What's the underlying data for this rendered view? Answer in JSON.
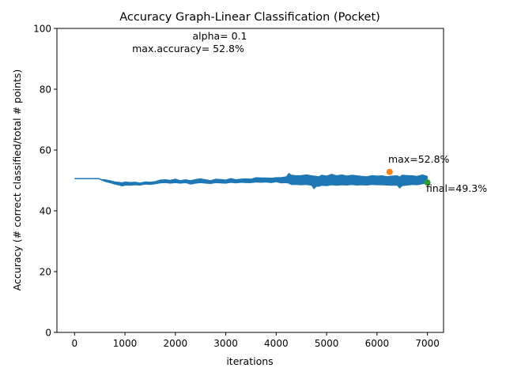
{
  "chart_data": {
    "type": "line",
    "title": "Accuracy Graph-Linear Classification (Pocket)",
    "xlabel": "iterations",
    "ylabel": "Accuracy (# correct classified/total # points)",
    "xlim": [
      -350,
      7320
    ],
    "ylim": [
      0,
      100
    ],
    "xticks": [
      0,
      1000,
      2000,
      3000,
      4000,
      5000,
      6000,
      7000
    ],
    "yticks": [
      0,
      20,
      40,
      60,
      80,
      100
    ],
    "grid": false,
    "legend": "none",
    "annotations": {
      "alpha_text": "alpha= 0.1",
      "max_accuracy_text": "max.accuracy= 52.8%",
      "max_label": "max=52.8%",
      "final_label": "final=49.3%"
    },
    "max_point": {
      "x": 6250,
      "y": 52.8
    },
    "final_point": {
      "x": 7000,
      "y": 49.3
    },
    "series": [
      {
        "color": "#1f77b4",
        "x": [
          0,
          480,
          520,
          600,
          700,
          800,
          900,
          950,
          1000,
          1100,
          1200,
          1300,
          1400,
          1500,
          1600,
          1700,
          1800,
          1900,
          2000,
          2100,
          2200,
          2300,
          2400,
          2500,
          2600,
          2700,
          2800,
          2900,
          3000,
          3100,
          3200,
          3300,
          3400,
          3500,
          3600,
          3700,
          3800,
          3900,
          4000,
          4100,
          4200,
          4250,
          4300,
          4400,
          4500,
          4600,
          4700,
          4750,
          4800,
          4850,
          4900,
          5000,
          5100,
          5200,
          5300,
          5400,
          5500,
          5600,
          5700,
          5800,
          5900,
          6000,
          6100,
          6200,
          6300,
          6400,
          6450,
          6500,
          6600,
          6700,
          6800,
          6900,
          7000
        ],
        "y": [
          50.6,
          50.6,
          50.3,
          49.9,
          49.6,
          49.0,
          48.8,
          48.3,
          49.2,
          48.6,
          48.9,
          48.5,
          49.3,
          48.9,
          49.1,
          49.7,
          49.8,
          49.5,
          49.9,
          49.3,
          49.6,
          48.9,
          49.8,
          50.1,
          49.6,
          49.2,
          50.0,
          49.8,
          49.6,
          50.2,
          49.5,
          49.9,
          50.1,
          49.7,
          50.4,
          49.8,
          50.2,
          49.9,
          50.3,
          49.7,
          50.4,
          52.1,
          49.6,
          50.5,
          49.4,
          50.8,
          49.2,
          47.4,
          50.2,
          48.4,
          50.4,
          49.5,
          51.2,
          48.8,
          50.3,
          49.2,
          51.0,
          49.0,
          50.6,
          48.8,
          50.9,
          49.4,
          50.2,
          49.3,
          50.5,
          50.1,
          47.6,
          50.8,
          49.5,
          50.7,
          49.6,
          51.2,
          49.3
        ],
        "upper": [
          50.6,
          50.6,
          50.4,
          50.3,
          50.0,
          49.6,
          49.4,
          49.3,
          49.6,
          49.4,
          49.5,
          49.2,
          49.6,
          49.5,
          49.7,
          50.2,
          50.3,
          50.1,
          50.5,
          50.0,
          50.3,
          50.0,
          50.4,
          50.6,
          50.3,
          50.0,
          50.5,
          50.4,
          50.2,
          50.7,
          50.3,
          50.5,
          50.6,
          50.5,
          51.0,
          50.9,
          50.9,
          50.8,
          51.0,
          51.0,
          51.3,
          52.4,
          51.8,
          51.6,
          51.7,
          51.9,
          51.6,
          51.5,
          51.4,
          51.3,
          51.8,
          51.5,
          52.1,
          51.6,
          51.9,
          51.5,
          51.8,
          51.6,
          51.4,
          51.3,
          51.7,
          51.5,
          51.6,
          51.3,
          51.5,
          51.6,
          51.2,
          51.8,
          51.7,
          51.6,
          51.4,
          51.9,
          51.4
        ],
        "lower": [
          50.6,
          50.6,
          50.2,
          49.6,
          49.2,
          48.7,
          48.3,
          48.1,
          48.4,
          48.3,
          48.5,
          48.4,
          48.7,
          48.6,
          48.8,
          49.1,
          49.2,
          49.0,
          49.2,
          49.0,
          49.2,
          48.7,
          49.0,
          49.2,
          49.0,
          48.9,
          49.2,
          49.1,
          49.0,
          49.3,
          49.1,
          49.3,
          49.2,
          49.2,
          49.4,
          49.3,
          49.4,
          49.2,
          49.5,
          49.1,
          49.2,
          49.0,
          48.6,
          48.6,
          48.5,
          48.6,
          48.3,
          47.2,
          48.0,
          48.0,
          48.3,
          48.2,
          48.5,
          48.3,
          48.5,
          48.4,
          48.6,
          48.4,
          48.5,
          48.4,
          48.6,
          48.5,
          48.5,
          48.4,
          48.3,
          48.4,
          47.4,
          48.2,
          48.4,
          48.6,
          48.5,
          48.8,
          49.0
        ]
      }
    ],
    "markers": [
      {
        "x": 6250,
        "y": 52.8,
        "color": "#ff7f0e"
      },
      {
        "x": 7000,
        "y": 49.3,
        "color": "#2ca02c"
      }
    ]
  }
}
